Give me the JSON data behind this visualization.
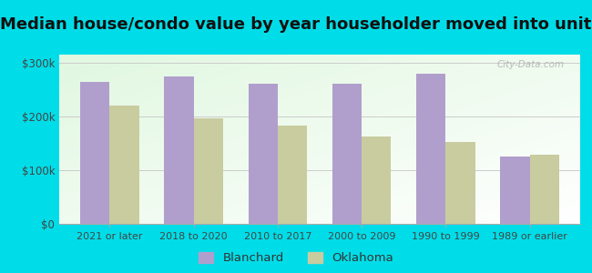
{
  "title": "Median house/condo value by year householder moved into unit",
  "categories": [
    "2021 or later",
    "2018 to 2020",
    "2010 to 2017",
    "2000 to 2009",
    "1990 to 1999",
    "1989 or earlier"
  ],
  "blanchard_values": [
    265000,
    275000,
    260000,
    260000,
    280000,
    125000
  ],
  "oklahoma_values": [
    220000,
    197000,
    183000,
    163000,
    153000,
    128000
  ],
  "blanchard_color": "#b09fcc",
  "oklahoma_color": "#c8cc9f",
  "background_outer": "#00dde8",
  "background_inner": "#e8f5e8",
  "title_fontsize": 13,
  "ylabel_ticks": [
    0,
    100000,
    200000,
    300000
  ],
  "ylabel_labels": [
    "$0",
    "$100k",
    "$200k",
    "$300k"
  ],
  "ylim": [
    0,
    315000
  ],
  "legend_blanchard": "Blanchard",
  "legend_oklahoma": "Oklahoma",
  "bar_width": 0.35,
  "watermark": "City-Data.com"
}
